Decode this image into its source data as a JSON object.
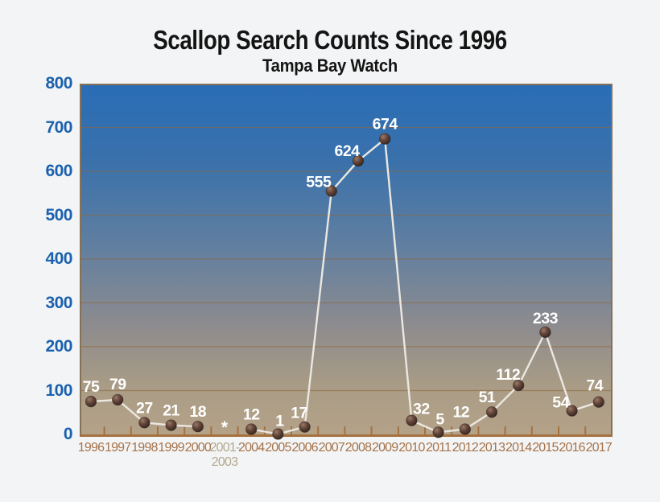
{
  "chart_data": {
    "type": "line",
    "title": "Scallop Search Counts Since 1996",
    "subtitle": "Tampa Bay Watch",
    "categories": [
      "1996",
      "1997",
      "1998",
      "1999",
      "2000",
      "2001-2003",
      "2004",
      "2005",
      "2006",
      "2007",
      "2008",
      "2009",
      "2010",
      "2011",
      "2012",
      "2013",
      "2014",
      "2015",
      "2016",
      "2017"
    ],
    "values": [
      75,
      79,
      27,
      21,
      18,
      null,
      12,
      1,
      17,
      555,
      624,
      674,
      32,
      5,
      12,
      51,
      112,
      233,
      54,
      74
    ],
    "missing": {
      "index": 5,
      "marker": "*",
      "label_lines": [
        "2001-",
        "2003"
      ]
    },
    "ylim": [
      0,
      800
    ],
    "ytick_step": 100,
    "yticks": [
      "0",
      "100",
      "200",
      "300",
      "400",
      "500",
      "600",
      "700",
      "800"
    ],
    "grid": "horizontal",
    "legend": null,
    "colors": {
      "background": "#f3f4f5",
      "plot_gradient_top": "#2a6db6",
      "plot_gradient_bottom": "#b4a288",
      "line": "#ebe8e1",
      "marker_dark": "#2f211c",
      "marker_light": "#9a7a66",
      "gridline": "#8d6840",
      "axis": "#a5713f",
      "y_tick_label": "#1b61ae",
      "x_tick_label": "#a5734a",
      "x_gap_label": "#b3a98f",
      "data_label": "#ffffff",
      "title": "#141414"
    }
  }
}
